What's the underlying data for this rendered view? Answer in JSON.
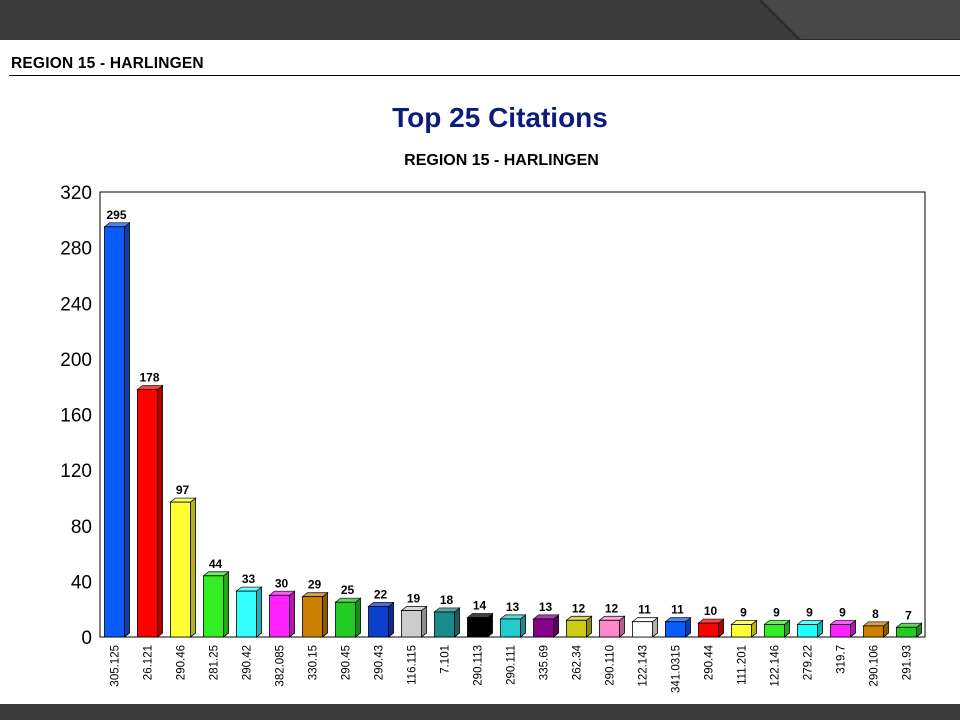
{
  "header": {
    "label": "REGION 15 - HARLINGEN"
  },
  "chart_data": {
    "type": "bar",
    "title": "Top 25 Citations",
    "subtitle": "REGION 15 - HARLINGEN",
    "xlabel": "",
    "ylabel": "",
    "ylim": [
      0,
      320
    ],
    "yticks": [
      "0",
      "40",
      "80",
      "120",
      "160",
      "200",
      "240",
      "280",
      "320"
    ],
    "grid": true,
    "legend": "none",
    "categories": [
      "305.125",
      "26.121",
      "290.46",
      "281.25",
      "290.42",
      "382.085",
      "330.15",
      "290.45",
      "290.43",
      "116.115",
      "7.101",
      "290.113",
      "290.111",
      "335.69",
      "262.34",
      "290.110",
      "122.143",
      "341.0315",
      "290.44",
      "111.201",
      "122.146",
      "279.22",
      "319.7",
      "290.106",
      "291.93"
    ],
    "values": [
      295,
      178,
      97,
      44,
      33,
      30,
      29,
      25,
      22,
      19,
      18,
      14,
      13,
      13,
      12,
      12,
      11,
      11,
      10,
      9,
      9,
      9,
      9,
      8,
      7
    ],
    "data_labels": [
      "295",
      "178",
      "97",
      "44",
      "33",
      "30",
      "29",
      "25",
      "22",
      "19",
      "18",
      "14",
      "13",
      "13",
      "12",
      "12",
      "11",
      "11",
      "10",
      "9",
      "9",
      "9",
      "9",
      "8",
      "7"
    ],
    "colors": [
      "#0a5cff",
      "#ff0000",
      "#ffff33",
      "#33ee22",
      "#33ffff",
      "#ff22ff",
      "#cc8000",
      "#22cc22",
      "#0b3fcc",
      "#cccccc",
      "#1a8a8a",
      "#000000",
      "#22cccc",
      "#880088",
      "#cccc11",
      "#ff88cc",
      "#ffffff",
      "#0a5cff",
      "#ff0000",
      "#ffff33",
      "#33ee22",
      "#22ffff",
      "#ff22ff",
      "#cc8000",
      "#22cc22"
    ]
  }
}
